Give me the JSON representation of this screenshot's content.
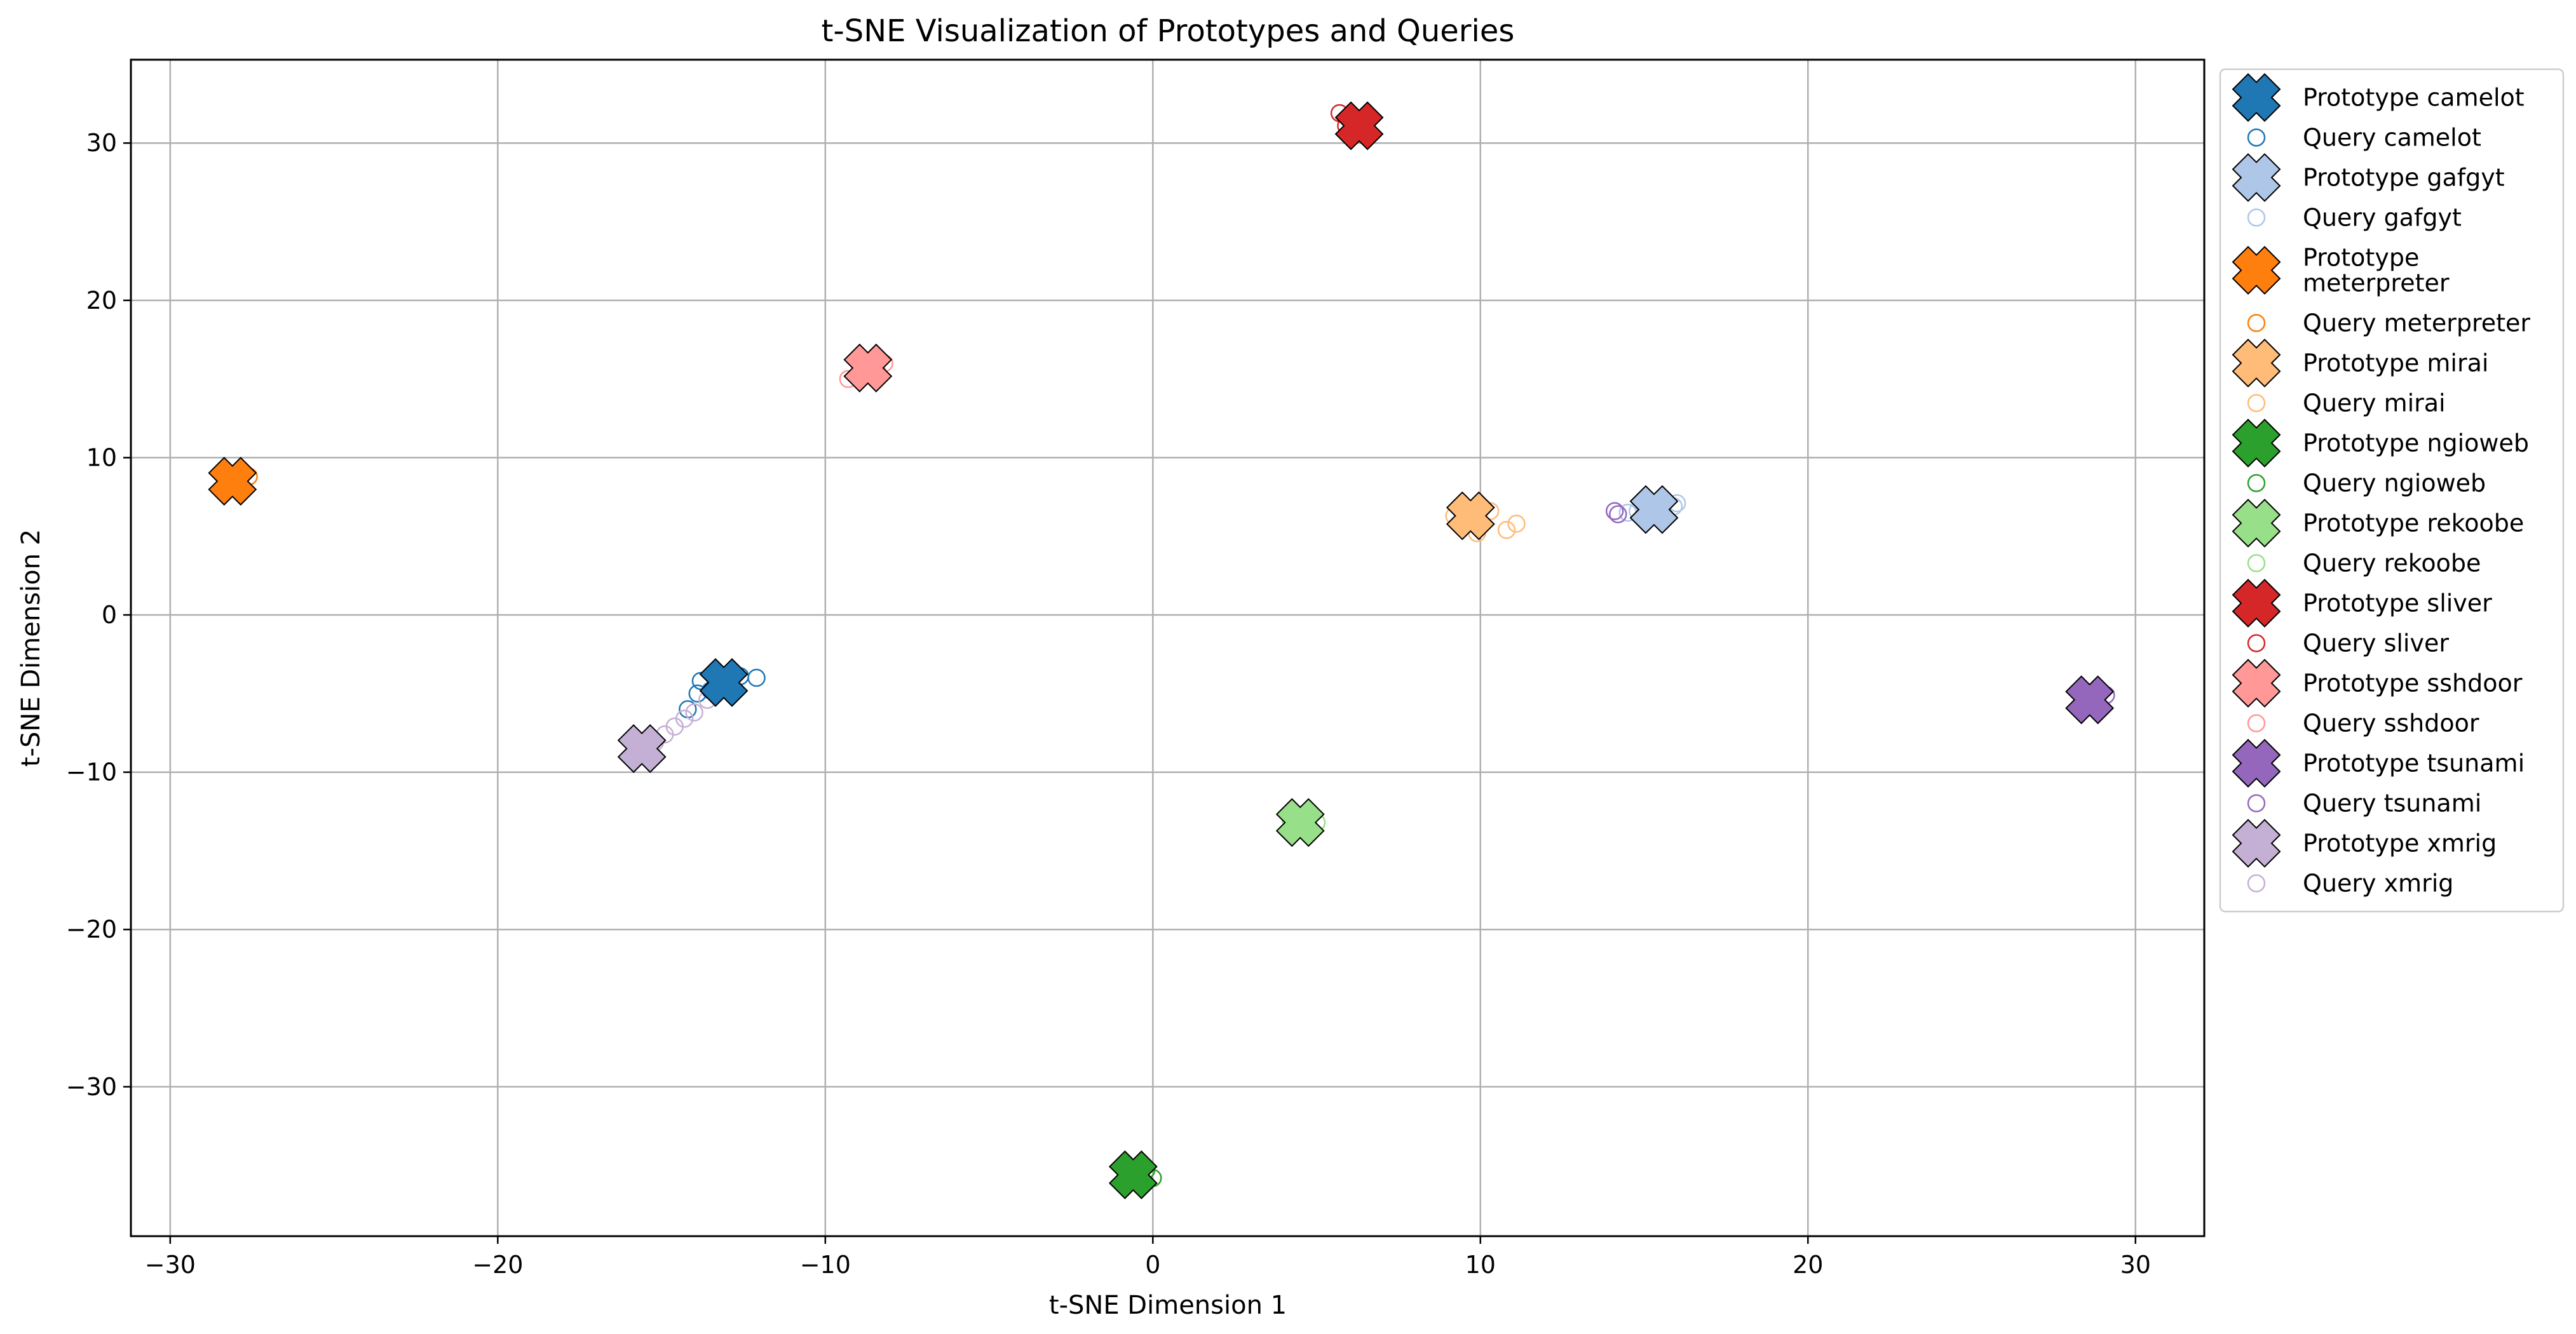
{
  "chart_data": {
    "type": "scatter",
    "title": "t-SNE Visualization of Prototypes and Queries",
    "xlabel": "t-SNE Dimension 1",
    "ylabel": "t-SNE Dimension 2",
    "xlim": [
      -31.2,
      32.1
    ],
    "ylim": [
      -39.5,
      35.3
    ],
    "xticks": [
      -30,
      -20,
      -10,
      0,
      10,
      20,
      30
    ],
    "yticks": [
      -30,
      -20,
      -10,
      0,
      10,
      20,
      30
    ],
    "xtick_labels": [
      "−30",
      "−20",
      "−10",
      "0",
      "10",
      "20",
      "30"
    ],
    "ytick_labels": [
      "−30",
      "−20",
      "−10",
      "0",
      "10",
      "20",
      "30"
    ],
    "grid": true,
    "legend_position": "outside-right-top",
    "series": [
      {
        "name": "camelot",
        "color": "#1f77b4",
        "prototype": [
          -13.1,
          -4.3
        ],
        "queries": [
          [
            -13.8,
            -4.2
          ],
          [
            -13.5,
            -4.8
          ],
          [
            -12.9,
            -3.8
          ],
          [
            -12.6,
            -3.9
          ],
          [
            -12.1,
            -4.0
          ],
          [
            -13.3,
            -3.7
          ],
          [
            -13.9,
            -5.0
          ],
          [
            -14.2,
            -6.0
          ],
          [
            -13.0,
            -4.6
          ]
        ]
      },
      {
        "name": "gafgyt",
        "color": "#aec7e8",
        "prototype": [
          15.3,
          6.7
        ],
        "queries": [
          [
            14.8,
            6.6
          ],
          [
            15.9,
            6.9
          ],
          [
            16.0,
            7.1
          ],
          [
            15.6,
            6.4
          ],
          [
            15.0,
            6.9
          ],
          [
            14.5,
            6.5
          ]
        ]
      },
      {
        "name": "meterpreter",
        "color": "#ff7f0e",
        "prototype": [
          -28.1,
          8.5
        ],
        "queries": [
          [
            -27.6,
            8.8
          ],
          [
            -27.9,
            8.2
          ]
        ]
      },
      {
        "name": "mirai",
        "color": "#ffbb78",
        "prototype": [
          9.7,
          6.3
        ],
        "queries": [
          [
            9.2,
            6.3
          ],
          [
            10.3,
            6.6
          ],
          [
            10.8,
            5.4
          ],
          [
            11.1,
            5.8
          ],
          [
            9.9,
            5.2
          ],
          [
            9.5,
            5.9
          ],
          [
            10.0,
            5.7
          ]
        ]
      },
      {
        "name": "ngioweb",
        "color": "#2ca02c",
        "prototype": [
          -0.6,
          -35.6
        ],
        "queries": [
          [
            -0.2,
            -35.3
          ],
          [
            0.0,
            -35.8
          ]
        ]
      },
      {
        "name": "rekoobe",
        "color": "#98df8a",
        "prototype": [
          4.5,
          -13.2
        ],
        "queries": [
          [
            5.0,
            -13.2
          ],
          [
            4.8,
            -13.6
          ],
          [
            4.2,
            -13.0
          ]
        ]
      },
      {
        "name": "sliver",
        "color": "#d62728",
        "prototype": [
          6.3,
          31.1
        ],
        "queries": [
          [
            5.7,
            31.9
          ],
          [
            5.9,
            31.1
          ],
          [
            6.1,
            31.5
          ],
          [
            6.5,
            31.2
          ]
        ]
      },
      {
        "name": "sshdoor",
        "color": "#ff9896",
        "prototype": [
          -8.7,
          15.7
        ],
        "queries": [
          [
            -8.2,
            16.0
          ],
          [
            -8.6,
            15.2
          ],
          [
            -9.3,
            15.0
          ],
          [
            -8.9,
            15.6
          ],
          [
            -8.4,
            15.4
          ]
        ]
      },
      {
        "name": "tsunami",
        "color": "#9467bd",
        "prototype": [
          28.6,
          -5.4
        ],
        "queries": [
          [
            28.9,
            -5.0
          ],
          [
            29.1,
            -5.1
          ],
          [
            28.8,
            -5.6
          ],
          [
            14.2,
            6.4
          ],
          [
            14.1,
            6.6
          ]
        ]
      },
      {
        "name": "xmrig",
        "color": "#c5b0d5",
        "prototype": [
          -15.6,
          -8.5
        ],
        "queries": [
          [
            -15.2,
            -8.1
          ],
          [
            -14.9,
            -7.6
          ],
          [
            -14.6,
            -7.1
          ],
          [
            -14.3,
            -6.6
          ],
          [
            -14.0,
            -6.2
          ],
          [
            -13.6,
            -5.4
          ],
          [
            -15.8,
            -8.8
          ]
        ]
      }
    ],
    "legend_entries": [
      {
        "kind": "prototype",
        "series": 0,
        "lines": [
          "Prototype camelot"
        ]
      },
      {
        "kind": "query",
        "series": 0,
        "lines": [
          "Query camelot"
        ]
      },
      {
        "kind": "prototype",
        "series": 1,
        "lines": [
          "Prototype gafgyt"
        ]
      },
      {
        "kind": "query",
        "series": 1,
        "lines": [
          "Query gafgyt"
        ]
      },
      {
        "kind": "prototype",
        "series": 2,
        "lines": [
          "Prototype",
          "meterpreter"
        ]
      },
      {
        "kind": "query",
        "series": 2,
        "lines": [
          "Query meterpreter"
        ]
      },
      {
        "kind": "prototype",
        "series": 3,
        "lines": [
          "Prototype mirai"
        ]
      },
      {
        "kind": "query",
        "series": 3,
        "lines": [
          "Query mirai"
        ]
      },
      {
        "kind": "prototype",
        "series": 4,
        "lines": [
          "Prototype ngioweb"
        ]
      },
      {
        "kind": "query",
        "series": 4,
        "lines": [
          "Query ngioweb"
        ]
      },
      {
        "kind": "prototype",
        "series": 5,
        "lines": [
          "Prototype rekoobe"
        ]
      },
      {
        "kind": "query",
        "series": 5,
        "lines": [
          "Query rekoobe"
        ]
      },
      {
        "kind": "prototype",
        "series": 6,
        "lines": [
          "Prototype sliver"
        ]
      },
      {
        "kind": "query",
        "series": 6,
        "lines": [
          "Query sliver"
        ]
      },
      {
        "kind": "prototype",
        "series": 7,
        "lines": [
          "Prototype sshdoor"
        ]
      },
      {
        "kind": "query",
        "series": 7,
        "lines": [
          "Query sshdoor"
        ]
      },
      {
        "kind": "prototype",
        "series": 8,
        "lines": [
          "Prototype tsunami"
        ]
      },
      {
        "kind": "query",
        "series": 8,
        "lines": [
          "Query tsunami"
        ]
      },
      {
        "kind": "prototype",
        "series": 9,
        "lines": [
          "Prototype xmrig"
        ]
      },
      {
        "kind": "query",
        "series": 9,
        "lines": [
          "Query xmrig"
        ]
      }
    ]
  }
}
